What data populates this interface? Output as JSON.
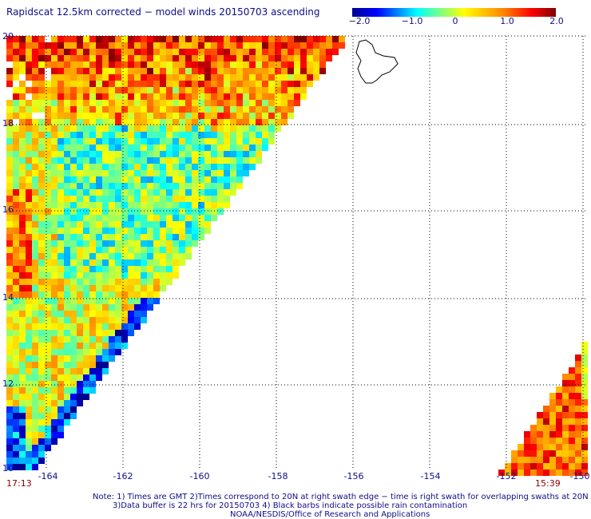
{
  "title": "Rapidscat 12.5km corrected − model winds 20150703 ascending",
  "colorbar": {
    "ticks": [
      "−2.0",
      "−1.0",
      "0",
      "1.0",
      "2.0"
    ],
    "range": [
      -2.0,
      2.0
    ]
  },
  "map": {
    "lat_labels": [
      "20",
      "18",
      "16",
      "14",
      "12",
      "10"
    ],
    "lon_labels": [
      "-164",
      "-162",
      "-160",
      "-158",
      "-156",
      "-154",
      "-152",
      "-150"
    ],
    "lat_range": [
      10,
      20
    ],
    "lon_range": [
      -164.9,
      -149.8
    ],
    "grid": "dotted"
  },
  "times": {
    "left": "17:13",
    "right": "15:39"
  },
  "notes": {
    "line1": "Note: 1) Times are GMT 2)Times correspond to 20N at right swath edge − time is right swath for overlapping swaths at 20N",
    "line2": "3)Data buffer is 22 hrs for 20150703 4) Black barbs indicate possible rain contamination",
    "line3": "NOAA/NESDIS/Office of Research and Applications"
  },
  "colors": {
    "text": "#0d0d8a",
    "time_text": "#8b0000",
    "grid": "#000000"
  }
}
